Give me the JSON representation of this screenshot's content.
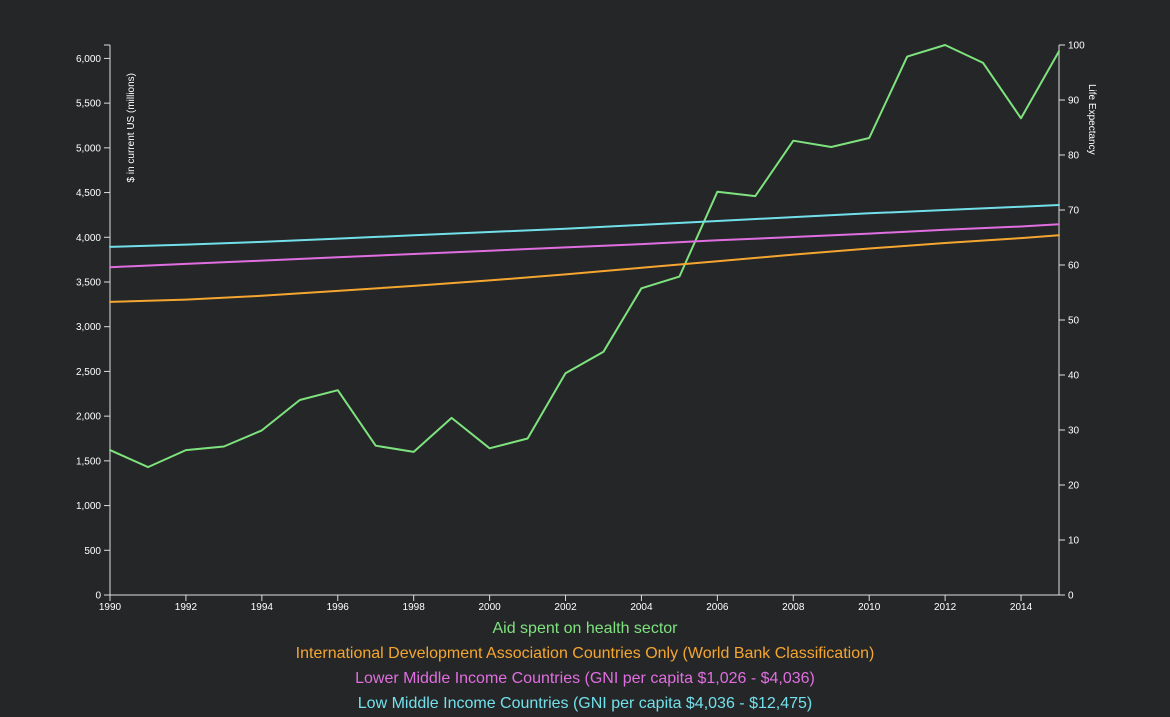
{
  "chart_data": {
    "type": "line",
    "x_ticks": [
      "1990",
      "1992",
      "1994",
      "1996",
      "1998",
      "2000",
      "2002",
      "2004",
      "2006",
      "2008",
      "2010",
      "2012",
      "2014"
    ],
    "xlim": [
      1990,
      2015
    ],
    "y_left": {
      "label": "$ in current US (millions)",
      "lim": [
        0,
        6150
      ],
      "ticks": [
        "0",
        "500",
        "1,000",
        "1,500",
        "2,000",
        "2,500",
        "3,000",
        "3,500",
        "4,000",
        "4,500",
        "5,000",
        "5,500",
        "6,000"
      ],
      "tick_values": [
        0,
        500,
        1000,
        1500,
        2000,
        2500,
        3000,
        3500,
        4000,
        4500,
        5000,
        5500,
        6000
      ]
    },
    "y_right": {
      "label": "Life Expectancy",
      "lim": [
        0,
        100
      ],
      "ticks": [
        "0",
        "10",
        "20",
        "30",
        "40",
        "50",
        "60",
        "70",
        "80",
        "90",
        "100"
      ],
      "tick_values": [
        0,
        10,
        20,
        30,
        40,
        50,
        60,
        70,
        80,
        90,
        100
      ]
    },
    "series": [
      {
        "name": "Aid spent on health sector",
        "color": "#7ee37e",
        "axis": "left",
        "x": [
          1990,
          1991,
          1992,
          1993,
          1994,
          1995,
          1996,
          1997,
          1998,
          1999,
          2000,
          2001,
          2002,
          2003,
          2004,
          2005,
          2006,
          2007,
          2008,
          2009,
          2010,
          2011,
          2012,
          2013,
          2014,
          2015
        ],
        "values": [
          1620,
          1430,
          1620,
          1660,
          1840,
          2180,
          2290,
          1670,
          1600,
          1980,
          1640,
          1750,
          2480,
          2720,
          3430,
          3560,
          4510,
          4460,
          5080,
          5010,
          5110,
          6020,
          6150,
          5950,
          5330,
          6080
        ]
      },
      {
        "name": "International Development Association Countries Only (World Bank Classification)",
        "color": "#f5a630",
        "axis": "right",
        "x": [
          1990,
          1992,
          1994,
          1996,
          1998,
          2000,
          2002,
          2004,
          2006,
          2008,
          2010,
          2012,
          2014,
          2015
        ],
        "values": [
          53.3,
          53.7,
          54.4,
          55.3,
          56.2,
          57.2,
          58.3,
          59.5,
          60.7,
          61.9,
          63.0,
          64.0,
          64.9,
          65.4
        ]
      },
      {
        "name": "Lower Middle Income Countries (GNI per capita $1,026 - $4,036)",
        "color": "#e06ee0",
        "axis": "right",
        "x": [
          1990,
          1992,
          1994,
          1996,
          1998,
          2000,
          2002,
          2004,
          2006,
          2008,
          2010,
          2012,
          2014,
          2015
        ],
        "values": [
          59.6,
          60.2,
          60.8,
          61.4,
          62.0,
          62.6,
          63.2,
          63.8,
          64.5,
          65.1,
          65.7,
          66.4,
          67.0,
          67.4
        ]
      },
      {
        "name": "Low Middle Income Countries (GNI per capita $4,036 - $12,475)",
        "color": "#72e0ea",
        "axis": "right",
        "x": [
          1990,
          1992,
          1994,
          1996,
          1998,
          2000,
          2002,
          2004,
          2006,
          2008,
          2010,
          2012,
          2014,
          2015
        ],
        "values": [
          63.3,
          63.7,
          64.2,
          64.8,
          65.4,
          66.0,
          66.6,
          67.3,
          68.0,
          68.7,
          69.4,
          70.0,
          70.6,
          70.9
        ]
      }
    ],
    "grid": false,
    "legend_position": "bottom-center"
  }
}
